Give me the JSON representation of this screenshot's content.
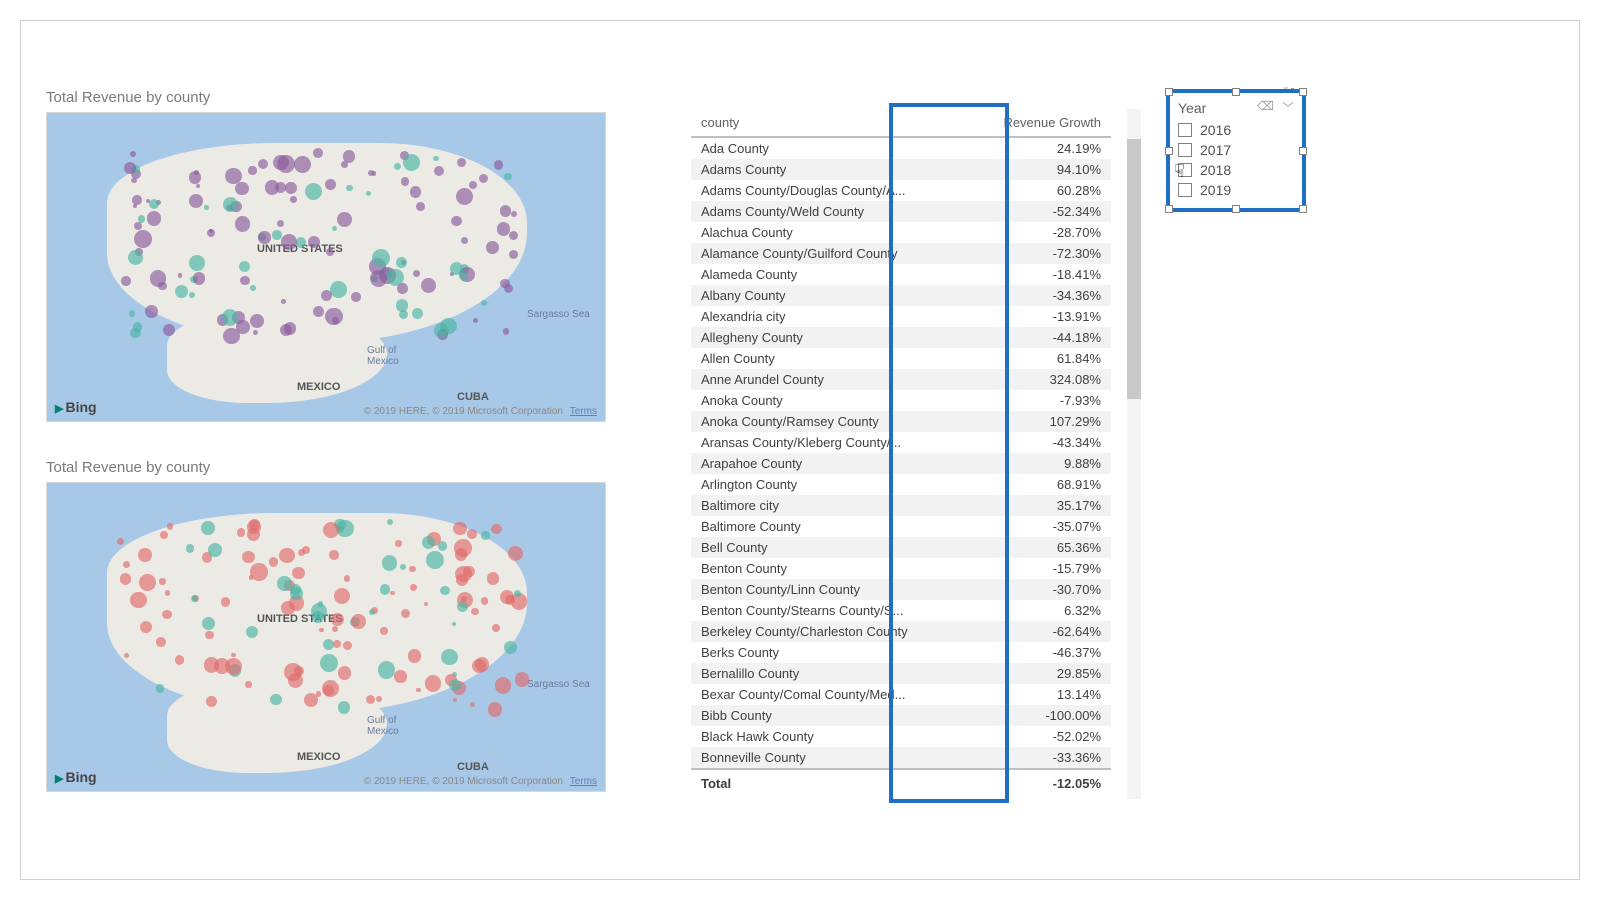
{
  "maps": {
    "title": "Total Revenue by county",
    "attribution_text": "© 2019 HERE, © 2019 Microsoft Corporation",
    "terms_label": "Terms",
    "bing_label": "Bing",
    "labels": {
      "us": "UNITED STATES",
      "mexico": "MEXICO",
      "cuba": "CUBA",
      "gulf": "Gulf of\nMexico",
      "sargasso": "Sargasso Sea"
    },
    "palette_top": {
      "primary": "#8a5a9c",
      "secondary": "#49b5a3"
    },
    "palette_bottom": {
      "primary": "#e06a6a",
      "secondary": "#49b5a3"
    },
    "bubble_opacity": 0.65,
    "map_background": "#a8c8e8",
    "land_color": "#eceae4"
  },
  "table": {
    "columns": [
      "county",
      "Revenue Growth"
    ],
    "rows": [
      [
        "Ada County",
        "24.19%"
      ],
      [
        "Adams County",
        "94.10%"
      ],
      [
        "Adams County/Douglas County/A...",
        "60.28%"
      ],
      [
        "Adams County/Weld County",
        "-52.34%"
      ],
      [
        "Alachua County",
        "-28.70%"
      ],
      [
        "Alamance County/Guilford County",
        "-72.30%"
      ],
      [
        "Alameda County",
        "-18.41%"
      ],
      [
        "Albany County",
        "-34.36%"
      ],
      [
        "Alexandria city",
        "-13.91%"
      ],
      [
        "Allegheny County",
        "-44.18%"
      ],
      [
        "Allen County",
        "61.84%"
      ],
      [
        "Anne Arundel County",
        "324.08%"
      ],
      [
        "Anoka County",
        "-7.93%"
      ],
      [
        "Anoka County/Ramsey County",
        "107.29%"
      ],
      [
        "Aransas County/Kleberg County/...",
        "-43.34%"
      ],
      [
        "Arapahoe County",
        "9.88%"
      ],
      [
        "Arlington County",
        "68.91%"
      ],
      [
        "Baltimore city",
        "35.17%"
      ],
      [
        "Baltimore County",
        "-35.07%"
      ],
      [
        "Bell County",
        "65.36%"
      ],
      [
        "Benton County",
        "-15.79%"
      ],
      [
        "Benton County/Linn County",
        "-30.70%"
      ],
      [
        "Benton County/Stearns County/S...",
        "6.32%"
      ],
      [
        "Berkeley County/Charleston County",
        "-62.64%"
      ],
      [
        "Berks County",
        "-46.37%"
      ],
      [
        "Bernalillo County",
        "29.85%"
      ],
      [
        "Bexar County/Comal County/Med...",
        "13.14%"
      ],
      [
        "Bibb County",
        "-100.00%"
      ],
      [
        "Black Hawk County",
        "-52.02%"
      ],
      [
        "Bonneville County",
        "-33.36%"
      ]
    ],
    "total_label": "Total",
    "total_value": "-12.05%",
    "highlight_color": "#1f6fc4"
  },
  "slicer": {
    "title": "Year",
    "items": [
      "2016",
      "2017",
      "2018",
      "2019"
    ],
    "border_color": "#1f6fc4"
  }
}
